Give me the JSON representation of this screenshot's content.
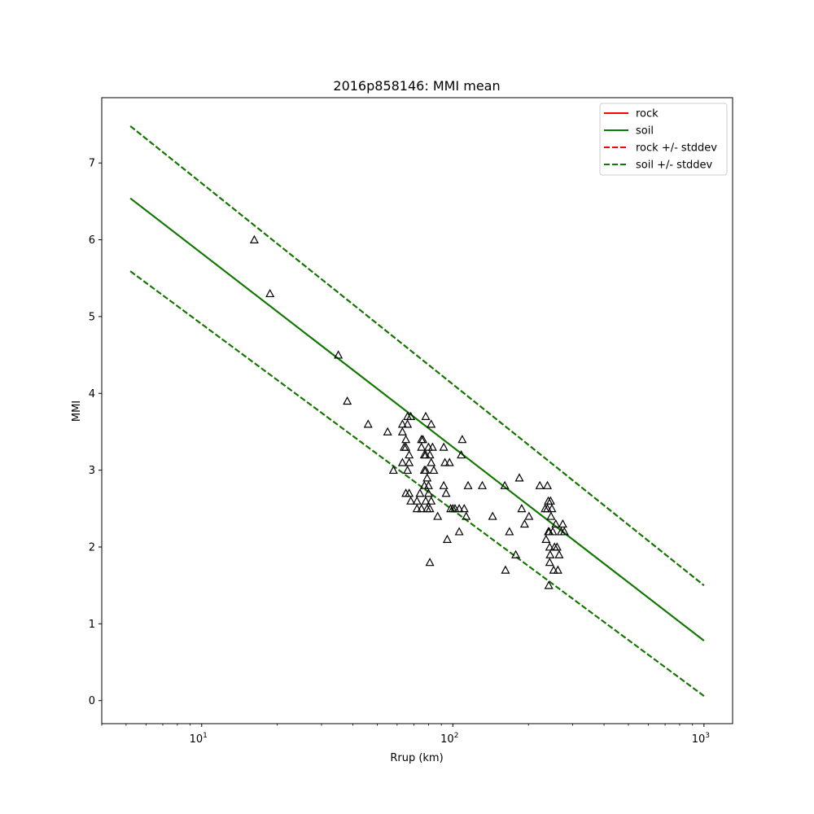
{
  "chart_data": {
    "type": "scatter",
    "title": "2016p858146: MMI mean",
    "xlabel": "Rrup (km)",
    "ylabel": "MMI",
    "xscale": "log",
    "xlim": [
      4,
      1300
    ],
    "ylim": [
      -0.3,
      7.85
    ],
    "yticks": [
      0,
      1,
      2,
      3,
      4,
      5,
      6,
      7
    ],
    "xticks": [
      {
        "value": 10,
        "base": "10",
        "exp": "1"
      },
      {
        "value": 100,
        "base": "10",
        "exp": "2"
      },
      {
        "value": 1000,
        "base": "10",
        "exp": "3"
      }
    ],
    "grid": false,
    "legend_position": "top-right",
    "series": [
      {
        "name": "rock",
        "color": "#ff0000",
        "style": "solid",
        "x": [
          5.2,
          1000
        ],
        "y": [
          6.54,
          0.78
        ]
      },
      {
        "name": "soil",
        "color": "#008000",
        "style": "solid",
        "x": [
          5.2,
          1000
        ],
        "y": [
          6.54,
          0.78
        ]
      },
      {
        "name": "rock +/- stddev",
        "color": "#ff0000",
        "style": "dashed",
        "x": [
          5.2,
          1000
        ],
        "y": [
          7.48,
          1.5
        ]
      },
      {
        "name": "rock +/- stddev",
        "color": "#ff0000",
        "style": "dashed",
        "x": [
          5.2,
          1000
        ],
        "y": [
          5.59,
          0.06
        ]
      },
      {
        "name": "soil +/- stddev",
        "color": "#008000",
        "style": "dashed",
        "x": [
          5.2,
          1000
        ],
        "y": [
          7.48,
          1.5
        ]
      },
      {
        "name": "soil +/- stddev",
        "color": "#008000",
        "style": "dashed",
        "x": [
          5.2,
          1000
        ],
        "y": [
          5.59,
          0.06
        ]
      }
    ],
    "legend": [
      {
        "label": "rock",
        "color": "#ff0000",
        "style": "solid"
      },
      {
        "label": "soil",
        "color": "#008000",
        "style": "solid"
      },
      {
        "label": "rock +/- stddev",
        "color": "#ff0000",
        "style": "dashed"
      },
      {
        "label": "soil +/- stddev",
        "color": "#008000",
        "style": "dashed"
      }
    ],
    "observations": {
      "marker": "triangle",
      "points": [
        [
          16.2,
          6.0
        ],
        [
          18.7,
          5.3
        ],
        [
          35,
          4.5
        ],
        [
          38,
          3.9
        ],
        [
          46,
          3.6
        ],
        [
          55,
          3.5
        ],
        [
          58,
          3.0
        ],
        [
          63,
          3.5
        ],
        [
          63,
          3.6
        ],
        [
          63,
          3.1
        ],
        [
          64,
          3.3
        ],
        [
          65,
          3.4
        ],
        [
          65,
          3.3
        ],
        [
          65,
          2.7
        ],
        [
          66,
          3.7
        ],
        [
          66,
          3.0
        ],
        [
          66,
          3.6
        ],
        [
          67,
          3.2
        ],
        [
          67,
          2.7
        ],
        [
          67,
          3.1
        ],
        [
          68,
          2.6
        ],
        [
          68,
          3.7
        ],
        [
          72,
          2.5
        ],
        [
          72,
          2.6
        ],
        [
          74,
          2.7
        ],
        [
          75,
          3.4
        ],
        [
          75,
          3.3
        ],
        [
          75,
          2.5
        ],
        [
          76,
          3.4
        ],
        [
          77,
          3.2
        ],
        [
          77,
          3.0
        ],
        [
          77,
          2.8
        ],
        [
          78,
          3.7
        ],
        [
          78,
          3.2
        ],
        [
          78,
          3.0
        ],
        [
          78,
          2.6
        ],
        [
          79,
          2.9
        ],
        [
          79,
          2.5
        ],
        [
          80,
          3.3
        ],
        [
          80,
          2.8
        ],
        [
          80,
          2.7
        ],
        [
          81,
          3.2
        ],
        [
          81,
          2.5
        ],
        [
          81,
          1.8
        ],
        [
          82,
          3.1
        ],
        [
          82,
          3.6
        ],
        [
          82,
          2.6
        ],
        [
          83,
          3.3
        ],
        [
          84,
          3.0
        ],
        [
          87,
          2.4
        ],
        [
          92,
          3.3
        ],
        [
          92,
          2.8
        ],
        [
          93,
          3.1
        ],
        [
          94,
          2.7
        ],
        [
          95,
          2.1
        ],
        [
          97,
          3.1
        ],
        [
          98,
          2.5
        ],
        [
          100,
          2.5
        ],
        [
          102,
          2.5
        ],
        [
          106,
          2.2
        ],
        [
          106,
          2.5
        ],
        [
          108,
          3.2
        ],
        [
          109,
          3.4
        ],
        [
          111,
          2.5
        ],
        [
          113,
          2.4
        ],
        [
          115,
          2.8
        ],
        [
          131,
          2.8
        ],
        [
          144,
          2.4
        ],
        [
          161,
          2.8
        ],
        [
          162,
          1.7
        ],
        [
          168,
          2.2
        ],
        [
          178,
          1.9
        ],
        [
          184,
          2.9
        ],
        [
          188,
          2.5
        ],
        [
          193,
          2.3
        ],
        [
          201,
          2.4
        ],
        [
          222,
          2.8
        ],
        [
          233,
          2.5
        ],
        [
          235,
          2.1
        ],
        [
          238,
          2.8
        ],
        [
          238,
          2.5
        ],
        [
          240,
          2.6
        ],
        [
          240,
          2.2
        ],
        [
          241,
          1.5
        ],
        [
          242,
          2.2
        ],
        [
          243,
          2.0
        ],
        [
          243,
          1.8
        ],
        [
          244,
          1.9
        ],
        [
          245,
          2.6
        ],
        [
          246,
          2.4
        ],
        [
          248,
          2.5
        ],
        [
          250,
          2.2
        ],
        [
          252,
          1.7
        ],
        [
          254,
          2.0
        ],
        [
          257,
          2.3
        ],
        [
          260,
          2.0
        ],
        [
          262,
          1.7
        ],
        [
          265,
          1.9
        ],
        [
          270,
          2.2
        ],
        [
          274,
          2.3
        ],
        [
          278,
          2.2
        ]
      ]
    }
  }
}
